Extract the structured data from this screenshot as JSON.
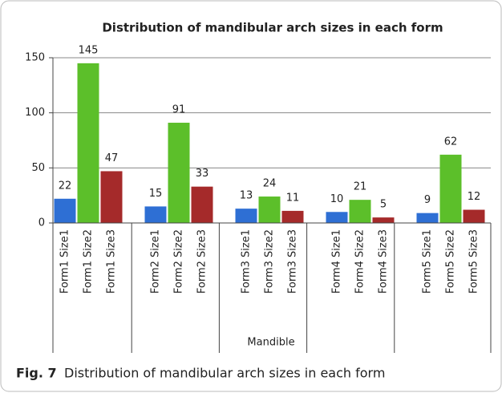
{
  "chart_data": {
    "type": "bar",
    "title": "Distribution of mandibular arch sizes in each form",
    "categories": [
      "Form1 Size1",
      "Form1 Size2",
      "Form1 Size3",
      "Form2 Size1",
      "Form2 Size2",
      "Form2 Size3",
      "Form3 Size1",
      "Form3 Size2",
      "Form3 Size3",
      "Form4 Size1",
      "Form4 Size2",
      "Form4 Size3",
      "Form5 Size1",
      "Form5 Size2",
      "Form5 Size3"
    ],
    "values": [
      22,
      145,
      47,
      15,
      91,
      33,
      13,
      24,
      11,
      10,
      21,
      5,
      9,
      62,
      12
    ],
    "colors": [
      "#2e6fd4",
      "#5cbf2a",
      "#a52a2a",
      "#2e6fd4",
      "#5cbf2a",
      "#a52a2a",
      "#2e6fd4",
      "#5cbf2a",
      "#a52a2a",
      "#2e6fd4",
      "#5cbf2a",
      "#a52a2a",
      "#2e6fd4",
      "#5cbf2a",
      "#a52a2a"
    ],
    "xlabel": "Mandible",
    "ylim": [
      0,
      150
    ],
    "yticks": [
      0,
      50,
      100,
      150
    ],
    "grid": true
  },
  "caption": {
    "label": "Fig. 7",
    "text": "Distribution of mandibular arch sizes in each form"
  }
}
